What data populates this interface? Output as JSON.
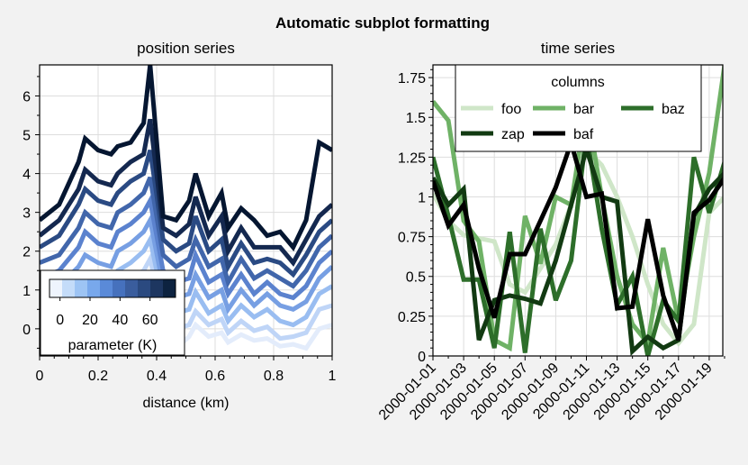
{
  "suptitle": "Automatic subplot formatting",
  "chart_data": [
    {
      "type": "line",
      "title": "position series",
      "xlabel": "distance (km)",
      "ylabel": "",
      "xlim": [
        0,
        1
      ],
      "ylim": [
        -0.7,
        6.8
      ],
      "xticks": [
        0,
        0.2,
        0.4,
        0.6,
        0.8,
        1
      ],
      "xtick_labels": [
        "0",
        "0.2",
        "0.4",
        "0.6",
        "0.8",
        "1"
      ],
      "yticks": [
        0,
        1,
        2,
        3,
        4,
        5,
        6
      ],
      "ytick_labels": [
        "0",
        "1",
        "2",
        "3",
        "4",
        "5",
        "6"
      ],
      "grid": true,
      "x": [
        0,
        0.0667,
        0.1333,
        0.1556,
        0.2,
        0.2444,
        0.2667,
        0.3111,
        0.3556,
        0.3778,
        0.4222,
        0.4667,
        0.5111,
        0.5333,
        0.5778,
        0.6222,
        0.6444,
        0.6889,
        0.7333,
        0.7778,
        0.8222,
        0.8667,
        0.9111,
        0.9556,
        1
      ],
      "colorbar": {
        "label": "parameter (K)",
        "ticks": [
          0,
          20,
          40,
          60
        ],
        "tick_labels": [
          "0",
          "20",
          "40",
          "60"
        ],
        "range": [
          -7,
          77
        ],
        "colors": [
          "#eef4fd",
          "#c4dcf9",
          "#9dc4f4",
          "#78a8ec",
          "#5a8ad8",
          "#4671bd",
          "#3a5d9d",
          "#2b4a80",
          "#1d3660",
          "#0d2340"
        ],
        "location": "lower-left"
      },
      "series": [
        {
          "param": 0,
          "color": "#e3ecfb",
          "values": [
            -0.3,
            -0.2,
            0.2,
            0.3,
            0.3,
            0.25,
            0.6,
            0.9,
            1.1,
            1.4,
            -0.2,
            -0.5,
            -0.2,
            0.1,
            -0.2,
            -0.1,
            -0.35,
            -0.15,
            -0.3,
            -0.25,
            -0.45,
            -0.4,
            -0.5,
            0,
            0.1
          ]
        },
        {
          "param": 10,
          "color": "#bfd5f7",
          "values": [
            0.1,
            0.2,
            0.6,
            0.8,
            0.7,
            0.6,
            1.0,
            1.3,
            1.5,
            1.8,
            0.3,
            0.0,
            0.1,
            0.45,
            0.1,
            0.25,
            -0.1,
            0.2,
            -0.05,
            0.05,
            -0.25,
            -0.2,
            -0.1,
            0.5,
            0.6
          ]
        },
        {
          "param": 20,
          "color": "#99bdf1",
          "values": [
            0.5,
            0.7,
            1.1,
            1.4,
            1.2,
            1.1,
            1.5,
            1.7,
            2.0,
            2.3,
            0.7,
            0.4,
            0.5,
            0.95,
            0.4,
            0.6,
            0.2,
            0.6,
            0.3,
            0.5,
            0.2,
            0.1,
            0.3,
            0.9,
            1.1
          ]
        },
        {
          "param": 30,
          "color": "#779fe3",
          "values": [
            0.9,
            1.1,
            1.6,
            1.9,
            1.7,
            1.6,
            2.0,
            2.2,
            2.5,
            2.8,
            1.1,
            0.8,
            0.9,
            1.4,
            0.8,
            1.0,
            0.5,
            1.0,
            0.6,
            0.9,
            0.6,
            0.5,
            0.7,
            1.3,
            1.6
          ]
        },
        {
          "param": 40,
          "color": "#5b82ce",
          "values": [
            1.3,
            1.5,
            2.1,
            2.5,
            2.2,
            2.1,
            2.5,
            2.7,
            3.0,
            3.3,
            1.5,
            1.2,
            1.3,
            1.9,
            1.2,
            1.4,
            0.9,
            1.4,
            0.9,
            1.2,
            0.9,
            0.8,
            1.1,
            1.7,
            2.0
          ]
        },
        {
          "param": 50,
          "color": "#4166ab",
          "values": [
            1.7,
            1.9,
            2.6,
            3.0,
            2.7,
            2.6,
            3.0,
            3.2,
            3.5,
            3.9,
            1.9,
            1.6,
            1.8,
            2.3,
            1.6,
            1.8,
            1.2,
            1.8,
            1.3,
            1.5,
            1.3,
            1.1,
            1.5,
            2.1,
            2.4
          ]
        },
        {
          "param": 60,
          "color": "#2a4a83",
          "values": [
            2.1,
            2.4,
            3.2,
            3.6,
            3.3,
            3.2,
            3.5,
            3.8,
            4.0,
            4.6,
            2.3,
            2.0,
            2.2,
            2.9,
            2.0,
            2.3,
            1.6,
            2.2,
            1.7,
            1.8,
            1.7,
            1.4,
            1.9,
            2.5,
            2.8
          ]
        },
        {
          "param": 70,
          "color": "#14284f",
          "values": [
            2.4,
            2.8,
            3.6,
            4.1,
            3.8,
            3.7,
            4.0,
            4.3,
            4.5,
            5.4,
            2.6,
            2.4,
            2.7,
            3.4,
            2.4,
            2.9,
            2.0,
            2.6,
            2.1,
            2.1,
            2.1,
            1.7,
            2.3,
            2.9,
            3.2
          ]
        },
        {
          "param": 75,
          "color": "#051631",
          "values": [
            2.8,
            3.2,
            4.3,
            4.9,
            4.6,
            4.5,
            4.7,
            4.8,
            5.3,
            6.8,
            2.9,
            2.8,
            3.3,
            4.0,
            2.9,
            3.5,
            2.6,
            3.1,
            2.8,
            2.4,
            2.5,
            2.1,
            2.8,
            4.8,
            4.6
          ]
        }
      ]
    },
    {
      "type": "line",
      "title": "time series",
      "xlabel": "",
      "ylabel": "",
      "ylim": [
        0,
        1.83
      ],
      "x": [
        "2000-01-01",
        "2000-01-02",
        "2000-01-03",
        "2000-01-04",
        "2000-01-05",
        "2000-01-06",
        "2000-01-07",
        "2000-01-08",
        "2000-01-09",
        "2000-01-10",
        "2000-01-11",
        "2000-01-12",
        "2000-01-13",
        "2000-01-14",
        "2000-01-15",
        "2000-01-16",
        "2000-01-17",
        "2000-01-18",
        "2000-01-19",
        "2000-01-20"
      ],
      "xticks": [
        "2000-01-01",
        "2000-01-03",
        "2000-01-05",
        "2000-01-07",
        "2000-01-09",
        "2000-01-11",
        "2000-01-13",
        "2000-01-15",
        "2000-01-17",
        "2000-01-19"
      ],
      "yticks": [
        0,
        0.25,
        0.5,
        0.75,
        1,
        1.25,
        1.5,
        1.75
      ],
      "ytick_labels": [
        "0",
        "0.25",
        "0.5",
        "0.75",
        "1",
        "1.25",
        "1.5",
        "1.75"
      ],
      "grid": true,
      "legend": {
        "title": "columns",
        "placement": "top-center",
        "ncol": 3
      },
      "series": [
        {
          "name": "foo",
          "color": "#cfe6c8",
          "values": [
            1.02,
            0.85,
            0.76,
            0.74,
            0.72,
            0.45,
            0.4,
            0.55,
            0.7,
            0.95,
            1.3,
            1.2,
            1.0,
            0.75,
            0.45,
            0.2,
            0.08,
            0.2,
            0.9,
            1.0
          ]
        },
        {
          "name": "bar",
          "color": "#6fb266",
          "values": [
            1.6,
            1.48,
            0.85,
            0.72,
            0.1,
            0.05,
            0.88,
            0.58,
            1.0,
            0.95,
            1.58,
            1.0,
            0.5,
            0.2,
            0.08,
            0.68,
            0.22,
            0.75,
            1.15,
            1.83
          ]
        },
        {
          "name": "baz",
          "color": "#2d6e2a",
          "values": [
            1.25,
            0.88,
            0.48,
            0.48,
            0.05,
            0.78,
            0.02,
            0.8,
            0.35,
            0.6,
            1.4,
            0.8,
            0.32,
            0.5,
            0.0,
            0.35,
            0.22,
            1.25,
            0.9,
            1.22
          ]
        },
        {
          "name": "zap",
          "color": "#123a12",
          "values": [
            1.12,
            0.95,
            1.05,
            0.1,
            0.35,
            0.38,
            0.36,
            0.33,
            0.6,
            0.95,
            1.3,
            1.0,
            0.97,
            0.03,
            0.12,
            0.05,
            0.1,
            0.88,
            1.05,
            1.15
          ]
        },
        {
          "name": "baf",
          "color": "#000000",
          "values": [
            1.1,
            0.82,
            0.95,
            0.55,
            0.24,
            0.64,
            0.64,
            0.85,
            1.06,
            1.34,
            1.0,
            1.02,
            0.3,
            0.31,
            0.86,
            0.38,
            0.1,
            0.9,
            0.98,
            1.12
          ]
        }
      ]
    }
  ]
}
